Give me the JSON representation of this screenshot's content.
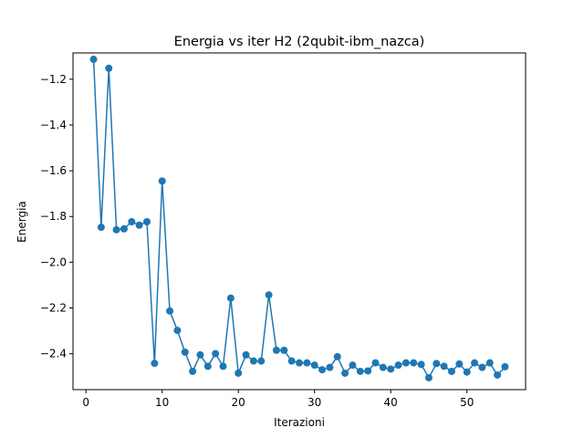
{
  "chart_data": {
    "type": "line",
    "title": "Energia vs iter H2 (2qubit-ibm_nazca)",
    "xlabel": "Iterazioni",
    "ylabel": "Energia",
    "xlim": [
      -1.7,
      57.7
    ],
    "ylim": [
      -2.557,
      -1.085
    ],
    "xticks": [
      0,
      10,
      20,
      30,
      40,
      50
    ],
    "yticks": [
      -2.4,
      -2.2,
      -2.0,
      -1.8,
      -1.6,
      -1.4,
      -1.2
    ],
    "xtick_labels": [
      "0",
      "10",
      "20",
      "30",
      "40",
      "50"
    ],
    "ytick_labels": [
      "−2.4",
      "−2.2",
      "−2.0",
      "−1.8",
      "−1.6",
      "−1.4",
      "−1.2"
    ],
    "grid": false,
    "marker": "circle",
    "color": "#1f77b4",
    "series": [
      {
        "x": [
          1,
          2,
          3,
          4,
          5,
          6,
          7,
          8,
          9,
          10,
          11,
          12,
          13,
          14,
          15,
          16,
          17,
          18,
          19,
          20,
          21,
          22,
          23,
          24,
          25,
          26,
          27,
          28,
          29,
          30,
          31,
          32,
          33,
          34,
          35,
          36,
          37,
          38,
          39,
          40,
          41,
          42,
          43,
          44,
          45,
          46,
          47,
          48,
          49,
          50,
          51,
          52,
          53,
          54,
          55
        ],
        "y": [
          -1.113,
          -1.847,
          -1.152,
          -1.858,
          -1.854,
          -1.823,
          -1.838,
          -1.823,
          -2.442,
          -1.645,
          -2.213,
          -2.298,
          -2.393,
          -2.477,
          -2.405,
          -2.455,
          -2.4,
          -2.455,
          -2.157,
          -2.485,
          -2.405,
          -2.432,
          -2.432,
          -2.143,
          -2.385,
          -2.385,
          -2.432,
          -2.44,
          -2.44,
          -2.45,
          -2.47,
          -2.46,
          -2.413,
          -2.485,
          -2.45,
          -2.477,
          -2.475,
          -2.44,
          -2.46,
          -2.467,
          -2.45,
          -2.44,
          -2.44,
          -2.447,
          -2.505,
          -2.443,
          -2.455,
          -2.477,
          -2.445,
          -2.48,
          -2.44,
          -2.46,
          -2.44,
          -2.493,
          -2.457
        ]
      }
    ]
  }
}
